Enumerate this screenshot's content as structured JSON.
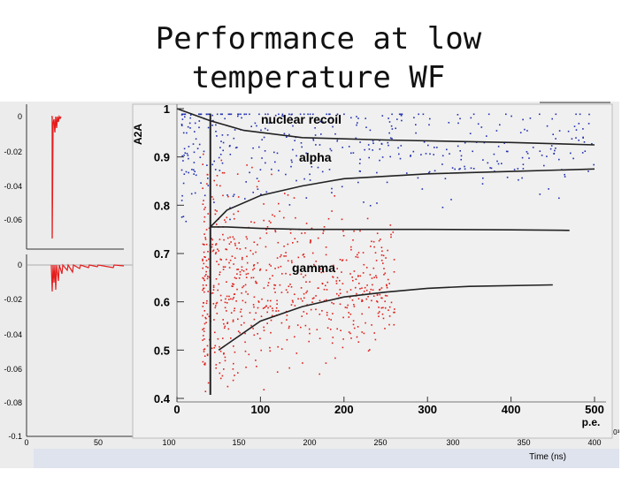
{
  "slide": {
    "title_line1": "Performance at low",
    "title_line2": "temperature WF"
  },
  "colors": {
    "electron_recoil": "#e0201b",
    "nuclear_recoil": "#1f2fb0",
    "band": "#222222",
    "waveform": "#e51c1c"
  },
  "chart_data": [
    {
      "type": "scatter",
      "title": "",
      "xlabel": "p.e.",
      "ylabel": "A2A",
      "xlim": [
        0,
        500
      ],
      "ylim": [
        0.4,
        1.0
      ],
      "x_ticks": [
        "0",
        "100",
        "200",
        "300",
        "400",
        "500"
      ],
      "y_ticks": [
        "0.4",
        "0.5",
        "0.6",
        "0.7",
        "0.8",
        "0.9",
        "1"
      ],
      "annotations": {
        "nuclear_recoil": "nuclear recoil",
        "alpha": "alpha",
        "gamma": "gamma"
      },
      "threshold_x": 40,
      "bands": [
        {
          "name": "nuclear recoil upper",
          "x": [
            0,
            40,
            80,
            150,
            250,
            400,
            500
          ],
          "y": [
            1.0,
            0.975,
            0.955,
            0.94,
            0.935,
            0.93,
            0.925
          ]
        },
        {
          "name": "nuclear recoil lower",
          "x": [
            40,
            60,
            100,
            150,
            200,
            300,
            400,
            500
          ],
          "y": [
            0.755,
            0.79,
            0.82,
            0.84,
            0.855,
            0.865,
            0.87,
            0.875
          ]
        },
        {
          "name": "electron recoil upper",
          "x": [
            40,
            60,
            100,
            150,
            200,
            300,
            400,
            470
          ],
          "y": [
            0.755,
            0.755,
            0.752,
            0.75,
            0.75,
            0.75,
            0.749,
            0.748
          ]
        },
        {
          "name": "electron recoil lower",
          "x": [
            50,
            100,
            150,
            200,
            250,
            300,
            350,
            450
          ],
          "y": [
            0.5,
            0.56,
            0.59,
            0.61,
            0.62,
            0.628,
            0.632,
            0.635
          ]
        }
      ],
      "series": [
        {
          "name": "nuclear recoil events",
          "color": "#1f2fb0",
          "center": 0.93,
          "spread": 0.06,
          "x_range": [
            5,
            500
          ],
          "count": 420
        },
        {
          "name": "electron recoil events",
          "color": "#e0201b",
          "center": 0.64,
          "spread": 0.09,
          "x_range": [
            30,
            260
          ],
          "count": 700
        }
      ]
    },
    {
      "type": "line",
      "title": "",
      "xlabel": "Time (ns)",
      "ylabel": "",
      "xlim": [
        0,
        400
      ],
      "ylim": [
        -0.1,
        0.0
      ],
      "x_ticks": [
        "0",
        "50",
        "100",
        "150",
        "200",
        "250",
        "300",
        "350",
        "400"
      ],
      "x_exponent": "×10³",
      "panels": [
        {
          "name": "waveform upper",
          "y_ticks": [
            "0",
            "-0.02",
            "-0.04",
            "-0.06"
          ]
        },
        {
          "name": "waveform lower",
          "y_ticks": [
            "0",
            "-0.02",
            "-0.04",
            "-0.06",
            "-0.08",
            "-0.1"
          ]
        }
      ]
    }
  ]
}
